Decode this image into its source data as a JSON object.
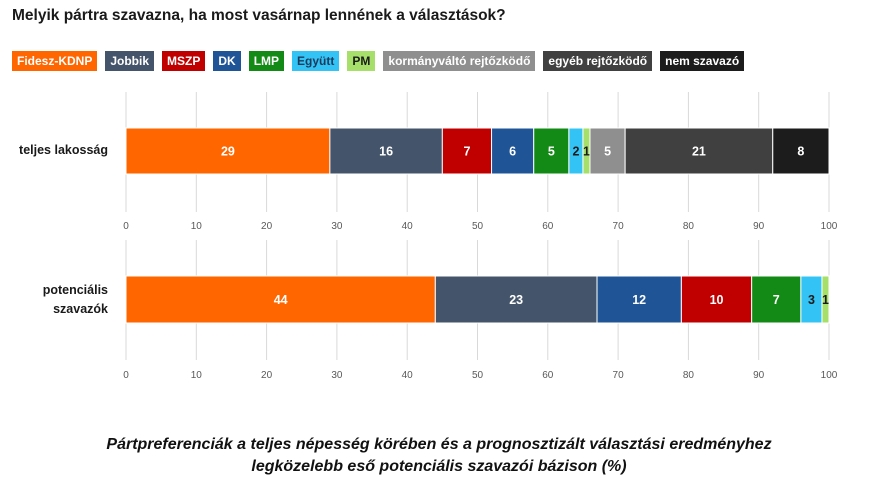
{
  "chart_data": {
    "type": "bar",
    "orientation": "horizontal",
    "stacked": true,
    "title": "Melyik pártra szavazna, ha most vasárnap lennének a választások?",
    "caption_line1": "Pártpreferenciák a teljes népesség körében és a prognosztizált választási eredményhez",
    "caption_line2": "legközelebb eső potenciális szavazói bázison (%)",
    "xlim": [
      0,
      100
    ],
    "ticks": [
      0,
      10,
      20,
      30,
      40,
      50,
      60,
      70,
      80,
      90,
      100
    ],
    "legend": [
      {
        "label": "Fidesz-KDNP",
        "color": "#ff6600",
        "text_color": "#ffffff"
      },
      {
        "label": "Jobbik",
        "color": "#44546a",
        "text_color": "#ffffff"
      },
      {
        "label": "MSZP",
        "color": "#c00000",
        "text_color": "#ffffff"
      },
      {
        "label": "DK",
        "color": "#1f5496",
        "text_color": "#ffffff"
      },
      {
        "label": "LMP",
        "color": "#138a16",
        "text_color": "#ffffff"
      },
      {
        "label": "Együtt",
        "color": "#33c4f5",
        "text_color": "#1a3a5c"
      },
      {
        "label": "PM",
        "color": "#a6e06a",
        "text_color": "#1a1a1a"
      },
      {
        "label": "kormányváltó rejtőzködő",
        "color": "#8f8f8f",
        "text_color": "#ffffff"
      },
      {
        "label": "egyéb rejtőzködő",
        "color": "#404040",
        "text_color": "#ffffff"
      },
      {
        "label": "nem szavazó",
        "color": "#1c1c1c",
        "text_color": "#ffffff"
      }
    ],
    "rows": [
      {
        "label_lines": [
          "teljes lakosság"
        ],
        "segments": [
          {
            "party": "Fidesz-KDNP",
            "value": 29,
            "color": "#ff6600",
            "text_color": "#ffffff"
          },
          {
            "party": "Jobbik",
            "value": 16,
            "color": "#44546a",
            "text_color": "#ffffff"
          },
          {
            "party": "MSZP",
            "value": 7,
            "color": "#c00000",
            "text_color": "#ffffff"
          },
          {
            "party": "DK",
            "value": 6,
            "color": "#1f5496",
            "text_color": "#ffffff"
          },
          {
            "party": "LMP",
            "value": 5,
            "color": "#138a16",
            "text_color": "#ffffff"
          },
          {
            "party": "Együtt",
            "value": 2,
            "color": "#33c4f5",
            "text_color": "#1a1a1a"
          },
          {
            "party": "PM",
            "value": 1,
            "color": "#a6e06a",
            "text_color": "#1a1a1a"
          },
          {
            "party": "kormányváltó rejtőzködő",
            "value": 5,
            "color": "#8f8f8f",
            "text_color": "#ffffff"
          },
          {
            "party": "egyéb rejtőzködő",
            "value": 21,
            "color": "#404040",
            "text_color": "#ffffff"
          },
          {
            "party": "nem szavazó",
            "value": 8,
            "color": "#1c1c1c",
            "text_color": "#ffffff"
          }
        ]
      },
      {
        "label_lines": [
          "potenciális",
          "szavazók"
        ],
        "segments": [
          {
            "party": "Fidesz-KDNP",
            "value": 44,
            "color": "#ff6600",
            "text_color": "#ffffff"
          },
          {
            "party": "Jobbik",
            "value": 23,
            "color": "#44546a",
            "text_color": "#ffffff"
          },
          {
            "party": "DK",
            "value": 12,
            "color": "#1f5496",
            "text_color": "#ffffff"
          },
          {
            "party": "MSZP",
            "value": 10,
            "color": "#c00000",
            "text_color": "#ffffff"
          },
          {
            "party": "LMP",
            "value": 7,
            "color": "#138a16",
            "text_color": "#ffffff"
          },
          {
            "party": "Együtt",
            "value": 3,
            "color": "#33c4f5",
            "text_color": "#1a1a1a"
          },
          {
            "party": "PM",
            "value": 1,
            "color": "#a6e06a",
            "text_color": "#1a1a1a"
          }
        ]
      }
    ]
  }
}
